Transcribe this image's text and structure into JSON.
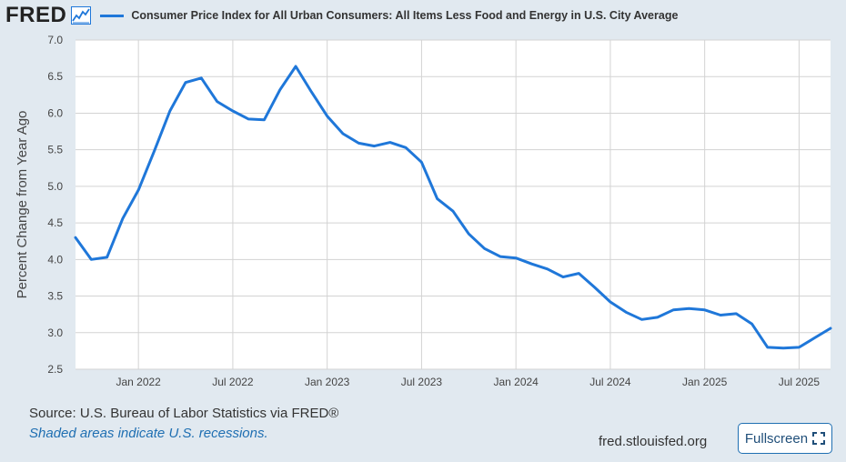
{
  "header": {
    "logo": "FRED",
    "logo_icon": "trend-chart-icon"
  },
  "colors": {
    "series": "#1f77d9",
    "background": "#e1e9f0",
    "plot_bg": "#ffffff",
    "grid": "#d3d3d3",
    "accent": "#1f6fb2"
  },
  "chart_data": {
    "type": "line",
    "title": "Consumer Price Index for All Urban Consumers: All Items Less Food and Energy in U.S. City Average",
    "xlabel": "",
    "ylabel": "Percent Change from Year Ago",
    "ylim": [
      2.5,
      7.0
    ],
    "yticks": [
      2.5,
      3.0,
      3.5,
      4.0,
      4.5,
      5.0,
      5.5,
      6.0,
      6.5,
      7.0
    ],
    "ytick_labels": [
      "2.5",
      "3.0",
      "3.5",
      "4.0",
      "4.5",
      "5.0",
      "5.5",
      "6.0",
      "6.5",
      "7.0"
    ],
    "xlim_month_index": [
      0,
      48
    ],
    "xticks": [
      {
        "label": "Jan 2022",
        "month_index": 4
      },
      {
        "label": "Jul 2022",
        "month_index": 10
      },
      {
        "label": "Jan 2023",
        "month_index": 16
      },
      {
        "label": "Jul 2023",
        "month_index": 22
      },
      {
        "label": "Jan 2024",
        "month_index": 28
      },
      {
        "label": "Jul 2024",
        "month_index": 34
      },
      {
        "label": "Jan 2025",
        "month_index": 40
      },
      {
        "label": "Jul 2025",
        "month_index": 46
      }
    ],
    "grid": true,
    "series": [
      {
        "name": "Consumer Price Index for All Urban Consumers: All Items Less Food and Energy in U.S. City Average",
        "values": [
          4.3,
          4.0,
          4.03,
          4.56,
          4.95,
          5.48,
          6.03,
          6.42,
          6.48,
          6.16,
          6.03,
          5.92,
          5.91,
          6.32,
          6.64,
          6.29,
          5.96,
          5.72,
          5.59,
          5.55,
          5.6,
          5.53,
          5.33,
          4.83,
          4.66,
          4.35,
          4.15,
          4.04,
          4.02,
          3.94,
          3.87,
          3.76,
          3.81,
          3.62,
          3.42,
          3.28,
          3.18,
          3.21,
          3.31,
          3.33,
          3.31,
          3.24,
          3.26,
          3.12,
          2.8,
          2.79,
          2.8,
          2.93,
          3.06
        ]
      }
    ]
  },
  "footer": {
    "source": "Source: U.S. Bureau of Labor Statistics via FRED®",
    "note": "Shaded areas indicate U.S. recessions.",
    "site": "fred.stlouisfed.org",
    "fullscreen_label": "Fullscreen",
    "fullscreen_icon": "expand-icon"
  }
}
